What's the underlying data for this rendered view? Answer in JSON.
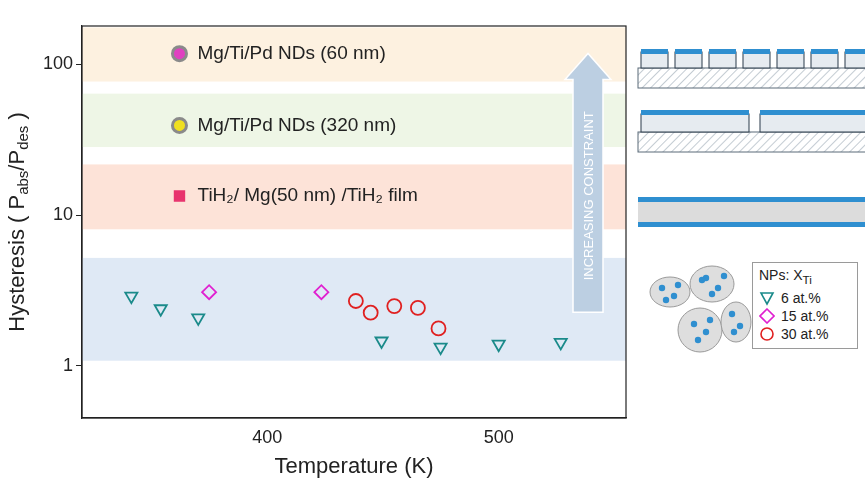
{
  "chart_data": {
    "type": "scatter",
    "x_label": "Temperature (K)",
    "y_label": [
      {
        "text": "Hysteresis ( P"
      },
      {
        "text": "abs",
        "sub": true
      },
      {
        "text": "/P"
      },
      {
        "text": "des",
        "sub": true
      },
      {
        "text": " )"
      }
    ],
    "xlim": [
      320,
      555
    ],
    "xticks": [
      400,
      500
    ],
    "ylim": [
      0.45,
      180
    ],
    "yticks": [
      1,
      10,
      100
    ],
    "log": "y",
    "grid": false,
    "legend": "right",
    "legend_title": [
      {
        "text": "NPs: X"
      },
      {
        "text": "Ti",
        "sub": true
      }
    ],
    "series": [
      {
        "name": "6 at.%",
        "color": "#1a8a8a",
        "marker": "triangle_down",
        "x": [
          341.3,
          354.0,
          370.2,
          449.4,
          474.9,
          500.0,
          526.8
        ],
        "values": [
          2.9,
          2.39,
          2.08,
          1.46,
          1.33,
          1.39,
          1.43
        ]
      },
      {
        "name": "15 at.%",
        "color": "#e020d0",
        "marker": "diamond",
        "x": [
          374.9,
          423.4
        ],
        "values": [
          3.08,
          3.08
        ]
      },
      {
        "name": "30 at.%",
        "color": "#e02020",
        "marker": "circle",
        "x": [
          438.3,
          444.7,
          454.9,
          465.1,
          474.0
        ],
        "values": [
          2.69,
          2.25,
          2.49,
          2.42,
          1.77
        ]
      }
    ],
    "annotations": [
      {
        "text": "Mg/Ti/Pd NDs (60 nm)",
        "x": 362.1,
        "y": 118,
        "color": "#e040c0",
        "marker": "circle"
      },
      {
        "text": "Mg/Ti/Pd NDs (320 nm)",
        "x": 362.1,
        "y": 39.4,
        "color": "#f0e020",
        "marker": "circle"
      },
      {
        "text": "TiH₂/ Mg(50 nm) /TiH₂ film",
        "x": 362.1,
        "y": 13.4,
        "color": "#e8336d",
        "marker": "square"
      }
    ],
    "arrow_label": "INCREASING CONSTRAINT",
    "bands": [
      {
        "ylim": [
          77,
          176
        ],
        "color": "#fdf1e0"
      },
      {
        "ylim": [
          28.3,
          64
        ],
        "color": "#eef6e6"
      },
      {
        "ylim": [
          8.05,
          21.7
        ],
        "color": "#fde3d8"
      },
      {
        "ylim": [
          1.08,
          5.2
        ],
        "color": "#dfe9f5"
      }
    ]
  }
}
